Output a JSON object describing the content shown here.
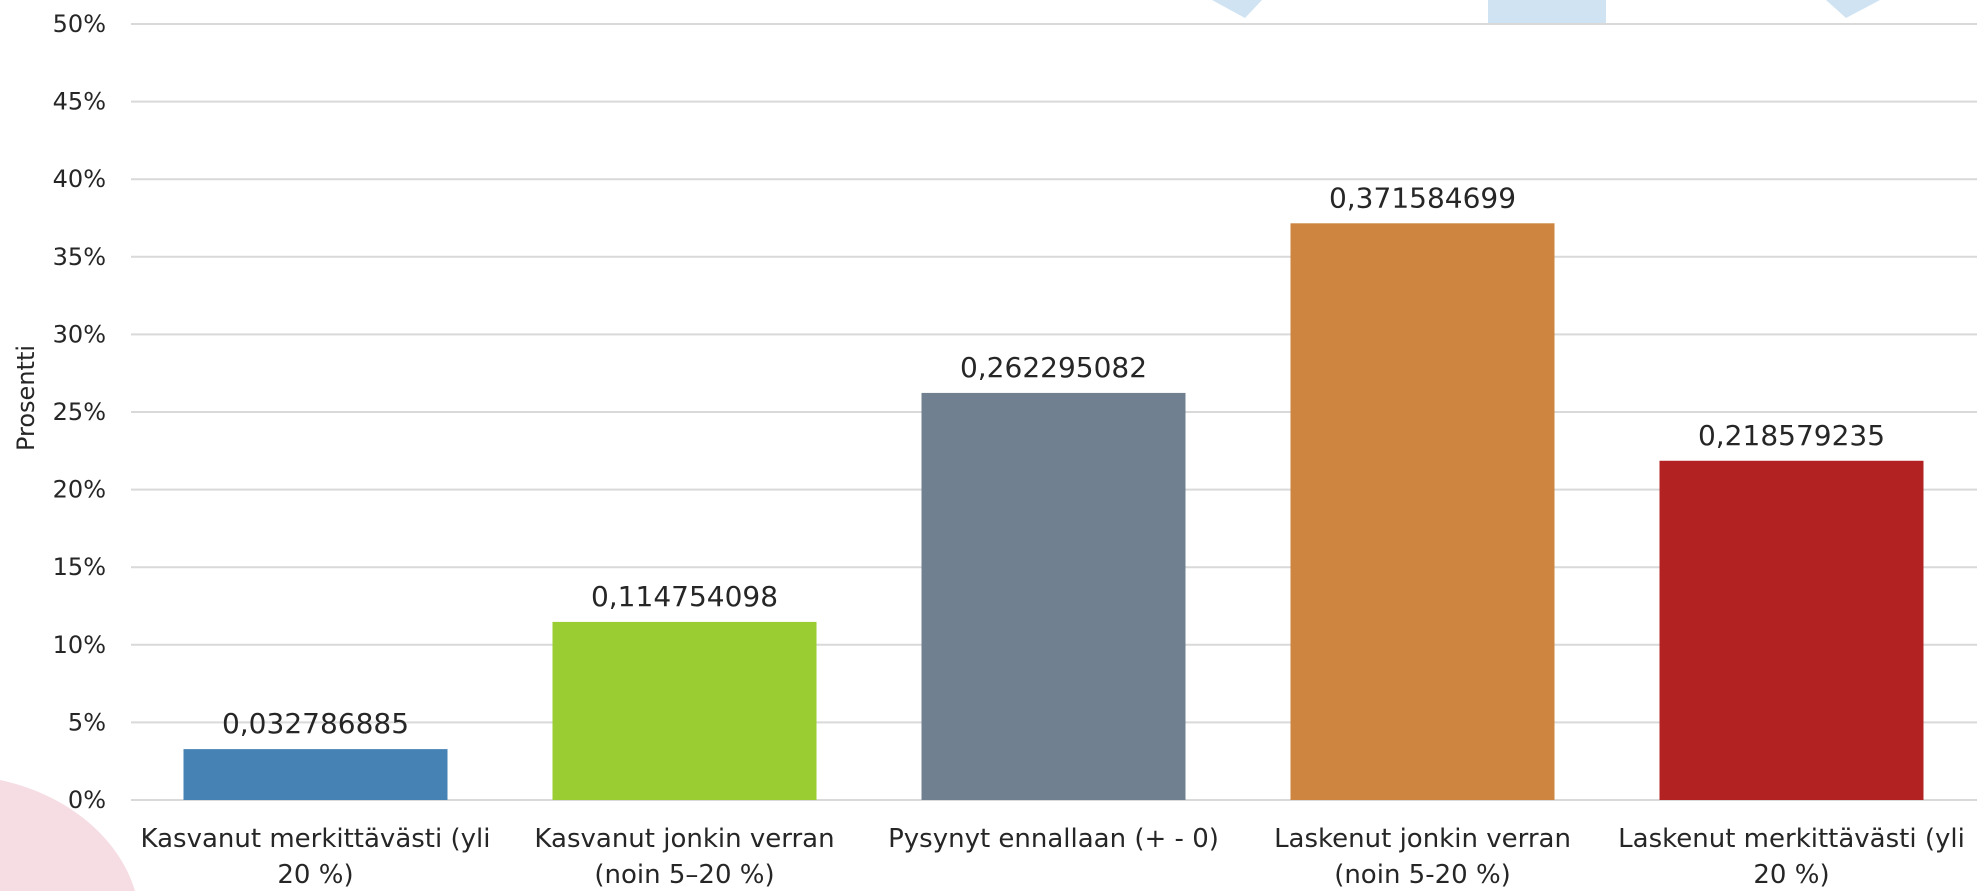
{
  "chart_data": {
    "type": "bar",
    "title": "",
    "xlabel": "",
    "ylabel": "Prosentti",
    "ylim": [
      0,
      0.5
    ],
    "y_ticks": [
      {
        "value": 0,
        "label": "0%"
      },
      {
        "value": 0.05,
        "label": "5%"
      },
      {
        "value": 0.1,
        "label": "10%"
      },
      {
        "value": 0.15,
        "label": "15%"
      },
      {
        "value": 0.2,
        "label": "20%"
      },
      {
        "value": 0.25,
        "label": "25%"
      },
      {
        "value": 0.3,
        "label": "30%"
      },
      {
        "value": 0.35,
        "label": "35%"
      },
      {
        "value": 0.4,
        "label": "40%"
      },
      {
        "value": 0.45,
        "label": "45%"
      },
      {
        "value": 0.5,
        "label": "50%"
      }
    ],
    "grid": true,
    "categories": [
      [
        "Kasvanut merkittävästi (yli",
        "20 %)"
      ],
      [
        "Kasvanut jonkin verran",
        "(noin 5–20 %)"
      ],
      [
        "Pysynyt ennallaan (+ - 0)"
      ],
      [
        "Laskenut jonkin verran",
        "(noin 5-20 %)"
      ],
      [
        "Laskenut merkittävästi (yli",
        "20 %)"
      ]
    ],
    "values": [
      0.032786885,
      0.114754098,
      0.262295082,
      0.371584699,
      0.218579235
    ],
    "data_labels": [
      "0,032786885",
      "0,114754098",
      "0,262295082",
      "0,371584699",
      "0,218579235"
    ],
    "colors": [
      "#4682b4",
      "#9acd32",
      "#708090",
      "#cd853f",
      "#b22222"
    ],
    "background_decor_colors": {
      "pink": "#f6dde3",
      "light_blue": "#cfe3f3"
    }
  }
}
